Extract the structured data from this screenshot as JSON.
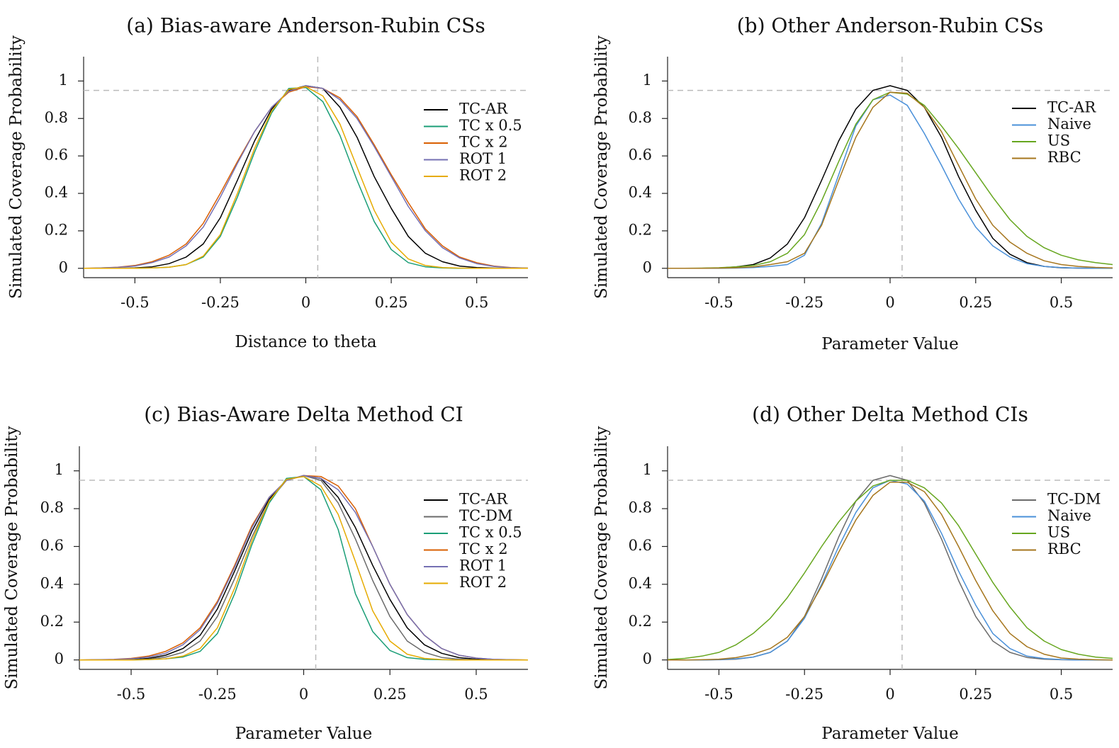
{
  "figure": {
    "panels": [
      {
        "title": "(a) Bias-aware Anderson-Rubin CSs",
        "xlabel": "Distance to theta",
        "ylabel": "Simulated Coverage Probability"
      },
      {
        "title": "(b) Other Anderson-Rubin CSs",
        "xlabel": "Parameter Value",
        "ylabel": "Simulated Coverage Probability"
      },
      {
        "title": "(c) Bias-Aware Delta Method CI",
        "xlabel": "Parameter Value",
        "ylabel": "Simulated Coverage Probability"
      },
      {
        "title": "(d) Other Delta Method CIs",
        "xlabel": "Parameter Value",
        "ylabel": "Simulated Coverage Probability"
      }
    ]
  },
  "colors": {
    "TC-AR": "#000000",
    "TC-DM": "#6b6b6b",
    "TC x 0.5": "#1b9e77",
    "TC x 2": "#d95f02",
    "ROT 1": "#7570b3",
    "ROT 2": "#e6ab02",
    "Naive": "#4a90d9",
    "US": "#66a61e",
    "RBC": "#a6761d",
    "reference": "#bbbbbb"
  },
  "chart_data": [
    {
      "type": "line",
      "title": "(a) Bias-aware Anderson-Rubin CSs",
      "xlabel": "Distance to theta",
      "ylabel": "Simulated Coverage Probability",
      "xlim": [
        -0.65,
        0.65
      ],
      "ylim": [
        -0.05,
        1.13
      ],
      "xticks": [
        -0.5,
        -0.25,
        0,
        0.25,
        0.5
      ],
      "xtick_labels": [
        "-0.5",
        "-0.25",
        "0",
        "0.25",
        "0.5"
      ],
      "yticks": [
        0,
        0.2,
        0.4,
        0.6,
        0.8,
        1
      ],
      "ytick_labels": [
        "0",
        "0.2",
        "0.4",
        "0.6",
        "0.8",
        "1"
      ],
      "reference_lines": {
        "y": 0.95,
        "x": 0.035
      },
      "legend_position": "right",
      "x": [
        -0.65,
        -0.6,
        -0.55,
        -0.5,
        -0.45,
        -0.4,
        -0.35,
        -0.3,
        -0.25,
        -0.2,
        -0.15,
        -0.1,
        -0.05,
        0,
        0.05,
        0.1,
        0.15,
        0.2,
        0.25,
        0.3,
        0.35,
        0.4,
        0.45,
        0.5,
        0.55,
        0.6,
        0.65
      ],
      "series": [
        {
          "name": "TC-AR",
          "values": [
            0,
            0,
            0,
            0.002,
            0.008,
            0.025,
            0.06,
            0.13,
            0.27,
            0.47,
            0.68,
            0.85,
            0.95,
            0.975,
            0.96,
            0.86,
            0.7,
            0.49,
            0.32,
            0.17,
            0.08,
            0.035,
            0.012,
            0.004,
            0.001,
            0,
            0
          ]
        },
        {
          "name": "TC x 0.5",
          "values": [
            0,
            0,
            0,
            0,
            0.002,
            0.006,
            0.02,
            0.06,
            0.17,
            0.38,
            0.62,
            0.83,
            0.96,
            0.965,
            0.89,
            0.71,
            0.47,
            0.25,
            0.1,
            0.03,
            0.008,
            0.002,
            0,
            0,
            0,
            0,
            0
          ]
        },
        {
          "name": "TC x 2",
          "values": [
            0,
            0.002,
            0.006,
            0.015,
            0.035,
            0.07,
            0.13,
            0.24,
            0.4,
            0.57,
            0.73,
            0.86,
            0.94,
            0.97,
            0.96,
            0.91,
            0.81,
            0.66,
            0.5,
            0.35,
            0.21,
            0.12,
            0.06,
            0.03,
            0.012,
            0.004,
            0.001
          ]
        },
        {
          "name": "ROT 1",
          "values": [
            0,
            0.002,
            0.005,
            0.012,
            0.03,
            0.06,
            0.12,
            0.22,
            0.38,
            0.56,
            0.73,
            0.86,
            0.945,
            0.975,
            0.96,
            0.9,
            0.8,
            0.65,
            0.49,
            0.33,
            0.2,
            0.11,
            0.055,
            0.025,
            0.01,
            0.003,
            0.001
          ]
        },
        {
          "name": "ROT 2",
          "values": [
            0,
            0,
            0,
            0,
            0.002,
            0.006,
            0.02,
            0.065,
            0.18,
            0.4,
            0.64,
            0.84,
            0.955,
            0.97,
            0.92,
            0.77,
            0.54,
            0.31,
            0.14,
            0.05,
            0.015,
            0.004,
            0.001,
            0,
            0,
            0,
            0
          ]
        }
      ]
    },
    {
      "type": "line",
      "title": "(b) Other Anderson-Rubin CSs",
      "xlabel": "Parameter Value",
      "ylabel": "Simulated Coverage Probability",
      "xlim": [
        -0.65,
        0.65
      ],
      "ylim": [
        -0.05,
        1.13
      ],
      "xticks": [
        -0.5,
        -0.25,
        0,
        0.25,
        0.5
      ],
      "xtick_labels": [
        "-0.5",
        "-0.25",
        "0",
        "0.25",
        "0.5"
      ],
      "yticks": [
        0,
        0.2,
        0.4,
        0.6,
        0.8,
        1
      ],
      "ytick_labels": [
        "0",
        "0.2",
        "0.4",
        "0.6",
        "0.8",
        "1"
      ],
      "reference_lines": {
        "y": 0.95,
        "x": 0.035
      },
      "legend_position": "right",
      "x": [
        -0.65,
        -0.6,
        -0.55,
        -0.5,
        -0.45,
        -0.4,
        -0.35,
        -0.3,
        -0.25,
        -0.2,
        -0.15,
        -0.1,
        -0.05,
        0,
        0.05,
        0.1,
        0.15,
        0.2,
        0.25,
        0.3,
        0.35,
        0.4,
        0.45,
        0.5,
        0.55,
        0.6,
        0.65
      ],
      "series": [
        {
          "name": "TC-AR",
          "values": [
            0,
            0,
            0,
            0.002,
            0.008,
            0.02,
            0.055,
            0.13,
            0.27,
            0.47,
            0.68,
            0.85,
            0.95,
            0.975,
            0.95,
            0.86,
            0.7,
            0.49,
            0.31,
            0.16,
            0.075,
            0.03,
            0.01,
            0.003,
            0.001,
            0,
            0
          ]
        },
        {
          "name": "Naive",
          "values": [
            0,
            0,
            0,
            0,
            0.001,
            0.004,
            0.01,
            0.02,
            0.07,
            0.24,
            0.5,
            0.76,
            0.9,
            0.925,
            0.87,
            0.72,
            0.55,
            0.37,
            0.22,
            0.12,
            0.06,
            0.025,
            0.01,
            0.004,
            0.001,
            0,
            0
          ]
        },
        {
          "name": "US",
          "values": [
            0,
            0,
            0.001,
            0.003,
            0.008,
            0.015,
            0.035,
            0.08,
            0.18,
            0.36,
            0.57,
            0.77,
            0.9,
            0.94,
            0.93,
            0.87,
            0.76,
            0.64,
            0.51,
            0.38,
            0.26,
            0.17,
            0.11,
            0.07,
            0.045,
            0.03,
            0.02
          ]
        },
        {
          "name": "RBC",
          "values": [
            0,
            0,
            0,
            0.001,
            0.003,
            0.008,
            0.02,
            0.035,
            0.08,
            0.23,
            0.47,
            0.7,
            0.86,
            0.94,
            0.935,
            0.86,
            0.73,
            0.55,
            0.37,
            0.23,
            0.14,
            0.08,
            0.04,
            0.02,
            0.01,
            0.005,
            0.002
          ]
        }
      ]
    },
    {
      "type": "line",
      "title": "(c) Bias-Aware Delta Method CI",
      "xlabel": "Parameter Value",
      "ylabel": "Simulated Coverage Probability",
      "xlim": [
        -0.65,
        0.65
      ],
      "ylim": [
        -0.05,
        1.13
      ],
      "xticks": [
        -0.5,
        -0.25,
        0,
        0.25,
        0.5
      ],
      "xtick_labels": [
        "-0.5",
        "-0.25",
        "0",
        "0.25",
        "0.5"
      ],
      "yticks": [
        0,
        0.2,
        0.4,
        0.6,
        0.8,
        1
      ],
      "ytick_labels": [
        "0",
        "0.2",
        "0.4",
        "0.6",
        "0.8",
        "1"
      ],
      "reference_lines": {
        "y": 0.95,
        "x": 0.035
      },
      "legend_position": "right",
      "x": [
        -0.65,
        -0.6,
        -0.55,
        -0.5,
        -0.45,
        -0.4,
        -0.35,
        -0.3,
        -0.25,
        -0.2,
        -0.15,
        -0.1,
        -0.05,
        0,
        0.05,
        0.1,
        0.15,
        0.2,
        0.25,
        0.3,
        0.35,
        0.4,
        0.45,
        0.5,
        0.55,
        0.6,
        0.65
      ],
      "series": [
        {
          "name": "TC-AR",
          "values": [
            0,
            0,
            0,
            0.002,
            0.008,
            0.025,
            0.06,
            0.13,
            0.27,
            0.47,
            0.68,
            0.85,
            0.95,
            0.975,
            0.96,
            0.86,
            0.7,
            0.5,
            0.32,
            0.17,
            0.08,
            0.035,
            0.012,
            0.004,
            0.001,
            0,
            0
          ]
        },
        {
          "name": "TC-DM",
          "values": [
            0,
            0,
            0,
            0.001,
            0.004,
            0.015,
            0.04,
            0.1,
            0.23,
            0.43,
            0.65,
            0.84,
            0.95,
            0.975,
            0.95,
            0.83,
            0.64,
            0.42,
            0.23,
            0.1,
            0.04,
            0.013,
            0.004,
            0.001,
            0,
            0,
            0
          ]
        },
        {
          "name": "TC x 0.5",
          "values": [
            0,
            0,
            0,
            0,
            0.002,
            0.006,
            0.015,
            0.045,
            0.14,
            0.35,
            0.61,
            0.83,
            0.96,
            0.97,
            0.9,
            0.69,
            0.35,
            0.15,
            0.05,
            0.012,
            0.003,
            0.001,
            0,
            0,
            0,
            0,
            0
          ]
        },
        {
          "name": "TC x 2",
          "values": [
            0,
            0.001,
            0.003,
            0.008,
            0.02,
            0.045,
            0.09,
            0.17,
            0.31,
            0.5,
            0.71,
            0.86,
            0.95,
            0.975,
            0.97,
            0.92,
            0.8,
            0.6,
            0.4,
            0.24,
            0.13,
            0.06,
            0.025,
            0.01,
            0.003,
            0.001,
            0
          ]
        },
        {
          "name": "ROT 1",
          "values": [
            0,
            0.001,
            0.002,
            0.006,
            0.015,
            0.035,
            0.08,
            0.16,
            0.3,
            0.49,
            0.7,
            0.86,
            0.95,
            0.975,
            0.96,
            0.9,
            0.78,
            0.6,
            0.4,
            0.24,
            0.13,
            0.06,
            0.025,
            0.01,
            0.003,
            0.001,
            0
          ]
        },
        {
          "name": "ROT 2",
          "values": [
            0,
            0,
            0,
            0,
            0.002,
            0.006,
            0.02,
            0.06,
            0.17,
            0.38,
            0.63,
            0.84,
            0.955,
            0.97,
            0.92,
            0.77,
            0.52,
            0.26,
            0.1,
            0.03,
            0.008,
            0.002,
            0,
            0,
            0,
            0,
            0
          ]
        }
      ]
    },
    {
      "type": "line",
      "title": "(d) Other Delta Method CIs",
      "xlabel": "Parameter Value",
      "ylabel": "Simulated Coverage Probability",
      "xlim": [
        -0.65,
        0.65
      ],
      "ylim": [
        -0.05,
        1.13
      ],
      "xticks": [
        -0.5,
        -0.25,
        0,
        0.25,
        0.5
      ],
      "xtick_labels": [
        "-0.5",
        "-0.25",
        "0",
        "0.25",
        "0.5"
      ],
      "yticks": [
        0,
        0.2,
        0.4,
        0.6,
        0.8,
        1
      ],
      "ytick_labels": [
        "0",
        "0.2",
        "0.4",
        "0.6",
        "0.8",
        "1"
      ],
      "reference_lines": {
        "y": 0.95,
        "x": 0.035
      },
      "legend_position": "right",
      "x": [
        -0.65,
        -0.6,
        -0.55,
        -0.5,
        -0.45,
        -0.4,
        -0.35,
        -0.3,
        -0.25,
        -0.2,
        -0.15,
        -0.1,
        -0.05,
        0,
        0.05,
        0.1,
        0.15,
        0.2,
        0.25,
        0.3,
        0.35,
        0.4,
        0.45,
        0.5,
        0.55,
        0.6,
        0.65
      ],
      "series": [
        {
          "name": "TC-DM",
          "values": [
            0,
            0,
            0,
            0.001,
            0.004,
            0.015,
            0.04,
            0.1,
            0.23,
            0.43,
            0.65,
            0.84,
            0.95,
            0.975,
            0.95,
            0.83,
            0.64,
            0.42,
            0.23,
            0.1,
            0.04,
            0.013,
            0.004,
            0.001,
            0,
            0,
            0
          ]
        },
        {
          "name": "Naive",
          "values": [
            0,
            0,
            0,
            0.002,
            0.006,
            0.015,
            0.04,
            0.1,
            0.22,
            0.4,
            0.6,
            0.78,
            0.91,
            0.95,
            0.93,
            0.84,
            0.67,
            0.47,
            0.29,
            0.14,
            0.06,
            0.02,
            0.007,
            0.002,
            0,
            0,
            0
          ]
        },
        {
          "name": "US",
          "values": [
            0.002,
            0.008,
            0.02,
            0.04,
            0.08,
            0.14,
            0.22,
            0.33,
            0.46,
            0.6,
            0.73,
            0.84,
            0.92,
            0.95,
            0.95,
            0.91,
            0.83,
            0.71,
            0.56,
            0.41,
            0.28,
            0.17,
            0.1,
            0.055,
            0.03,
            0.015,
            0.008
          ]
        },
        {
          "name": "RBC",
          "values": [
            0,
            0,
            0.001,
            0.004,
            0.012,
            0.03,
            0.06,
            0.12,
            0.23,
            0.39,
            0.57,
            0.74,
            0.87,
            0.94,
            0.94,
            0.89,
            0.77,
            0.6,
            0.42,
            0.26,
            0.14,
            0.07,
            0.03,
            0.01,
            0.004,
            0.001,
            0
          ]
        }
      ]
    }
  ]
}
